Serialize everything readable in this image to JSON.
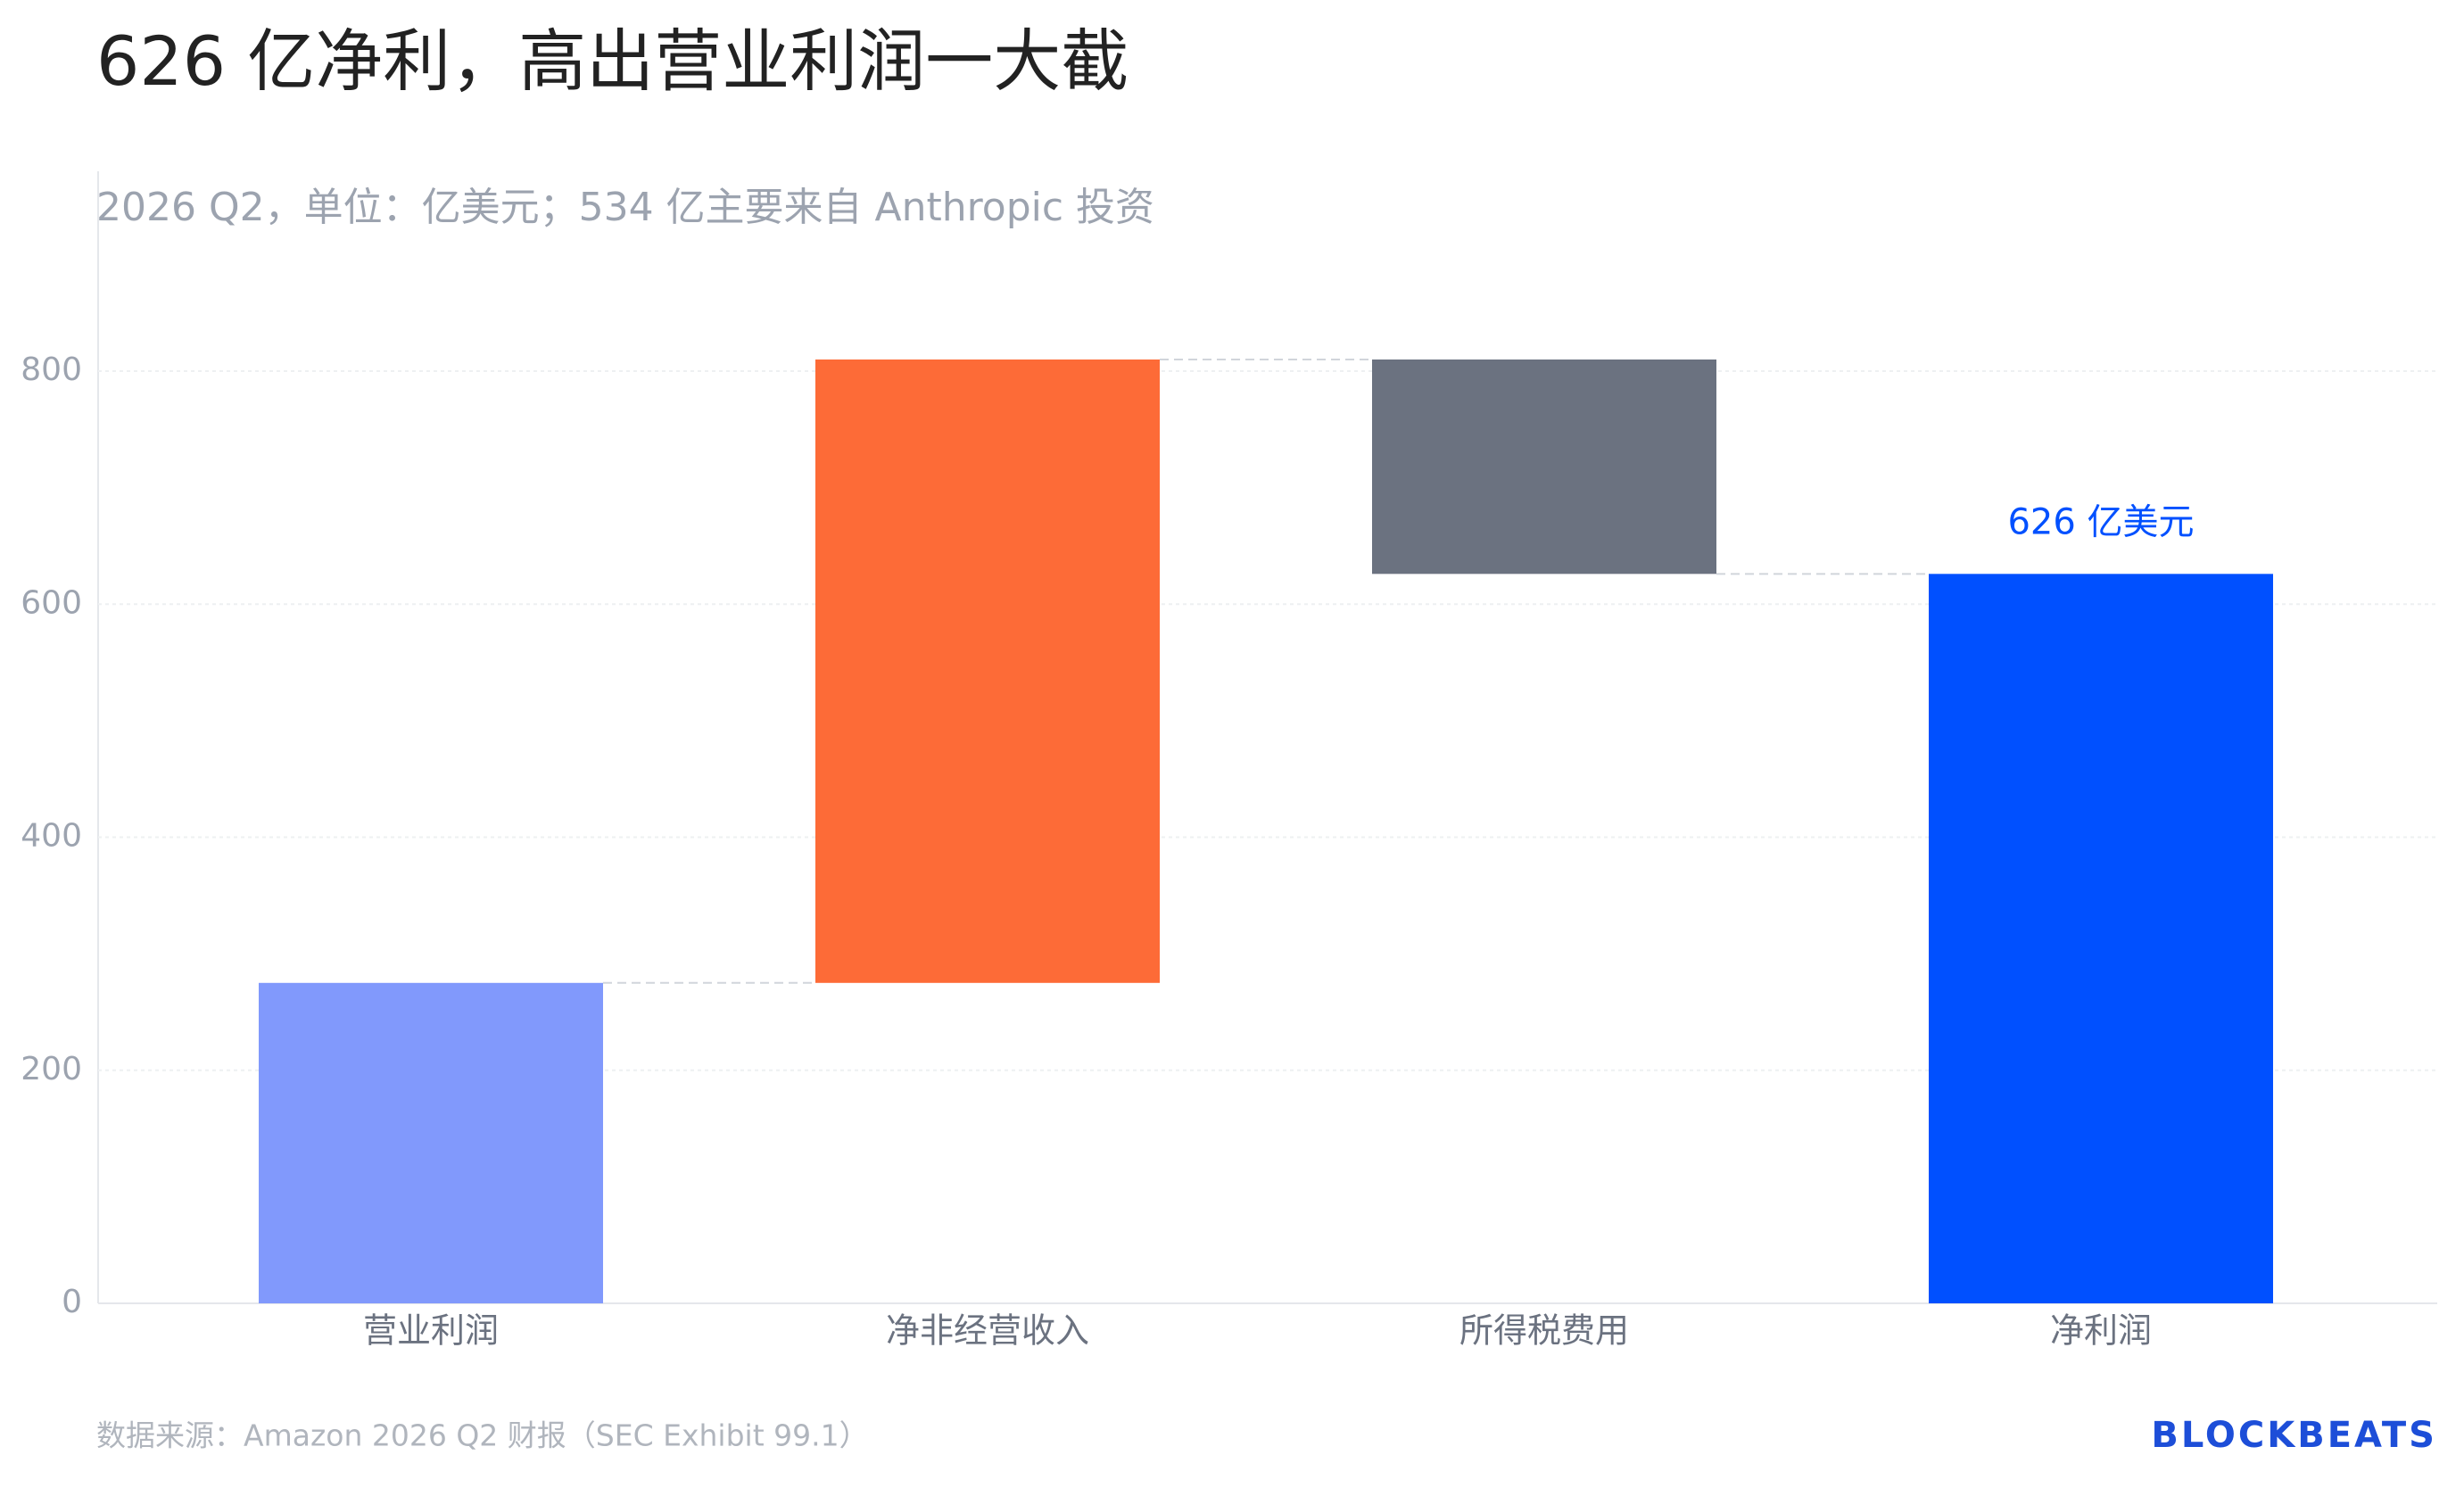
{
  "chart_data": {
    "type": "waterfall",
    "title": "626 亿净利，高出营业利润一大截",
    "subtitle": "2026 Q2，单位：亿美元；534 亿主要来自 Anthropic 投资",
    "categories": [
      "营业利润",
      "净非经营收入",
      "所得税费用",
      "净利润"
    ],
    "values": [
      275,
      535,
      -184,
      626
    ],
    "measure": [
      "absolute",
      "relative",
      "relative",
      "total"
    ],
    "colors": [
      "#8199fc",
      "#fd6b37",
      "#6b7280",
      "#0050ff"
    ],
    "value_labels": [
      null,
      null,
      null,
      "626 亿美元"
    ],
    "ylim": [
      0,
      970
    ],
    "yticks": [
      0,
      200,
      400,
      600,
      800
    ],
    "grid": true,
    "source": "数据来源：Amazon 2026 Q2 财报（SEC Exhibit 99.1）",
    "brand": "BLOCKBEATS"
  }
}
